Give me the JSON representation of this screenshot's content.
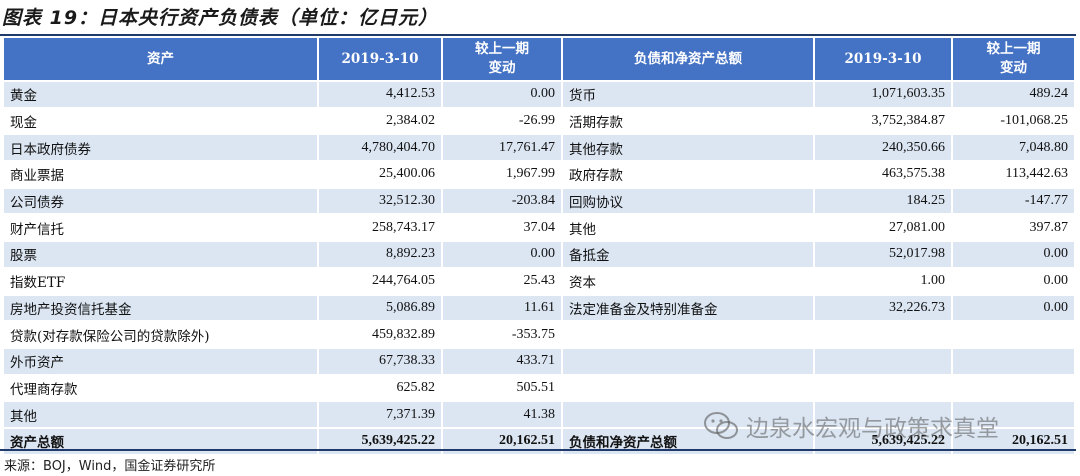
{
  "title": "图表 19：日本央行资产负债表（单位：亿日元）",
  "headers": {
    "assets": "资产",
    "date": "2019-3-10",
    "change_line1": "较上一期",
    "change_line2": "变动",
    "liabilities": "负债和净资产总额"
  },
  "rows": [
    {
      "a": "黄金",
      "av": "4,412.53",
      "ac": "0.00",
      "l": "货币",
      "lv": "1,071,603.35",
      "lc": "489.24"
    },
    {
      "a": "现金",
      "av": "2,384.02",
      "ac": "-26.99",
      "l": "活期存款",
      "lv": "3,752,384.87",
      "lc": "-101,068.25"
    },
    {
      "a": "日本政府债券",
      "av": "4,780,404.70",
      "ac": "17,761.47",
      "l": "其他存款",
      "lv": "240,350.66",
      "lc": "7,048.80"
    },
    {
      "a": "商业票据",
      "av": "25,400.06",
      "ac": "1,967.99",
      "l": "政府存款",
      "lv": "463,575.38",
      "lc": "113,442.63"
    },
    {
      "a": "公司债券",
      "av": "32,512.30",
      "ac": "-203.84",
      "l": "回购协议",
      "lv": "184.25",
      "lc": "-147.77"
    },
    {
      "a": "财产信托",
      "av": "258,743.17",
      "ac": "37.04",
      "l": "其他",
      "lv": "27,081.00",
      "lc": "397.87"
    },
    {
      "a": "股票",
      "av": "8,892.23",
      "ac": "0.00",
      "l": "备抵金",
      "lv": "52,017.98",
      "lc": "0.00"
    },
    {
      "a": "指数ETF",
      "av": "244,764.05",
      "ac": "25.43",
      "l": "资本",
      "lv": "1.00",
      "lc": "0.00"
    },
    {
      "a": "房地产投资信托基金",
      "av": "5,086.89",
      "ac": "11.61",
      "l": "法定准备金及特别准备金",
      "lv": "32,226.73",
      "lc": "0.00"
    },
    {
      "a": "贷款(对存款保险公司的贷款除外)",
      "av": "459,832.89",
      "ac": "-353.75",
      "l": "",
      "lv": "",
      "lc": ""
    },
    {
      "a": "外币资产",
      "av": "67,738.33",
      "ac": "433.71",
      "l": "",
      "lv": "",
      "lc": ""
    },
    {
      "a": "代理商存款",
      "av": "625.82",
      "ac": "505.51",
      "l": "",
      "lv": "",
      "lc": ""
    },
    {
      "a": "其他",
      "av": "7,371.39",
      "ac": "41.38",
      "l": "",
      "lv": "",
      "lc": ""
    }
  ],
  "total": {
    "a": "资产总额",
    "av": "5,639,425.22",
    "ac": "20,162.51",
    "l": "负债和净资产总额",
    "lv": "5,639,425.22",
    "lc": "20,162.51"
  },
  "source": "来源：BOJ，Wind，国金证券研究所",
  "watermark": "边泉水宏观与政策求真堂",
  "colors": {
    "header_bg": "#4472c4",
    "band": "#dce6f3",
    "rule": "#1f3a6b"
  }
}
